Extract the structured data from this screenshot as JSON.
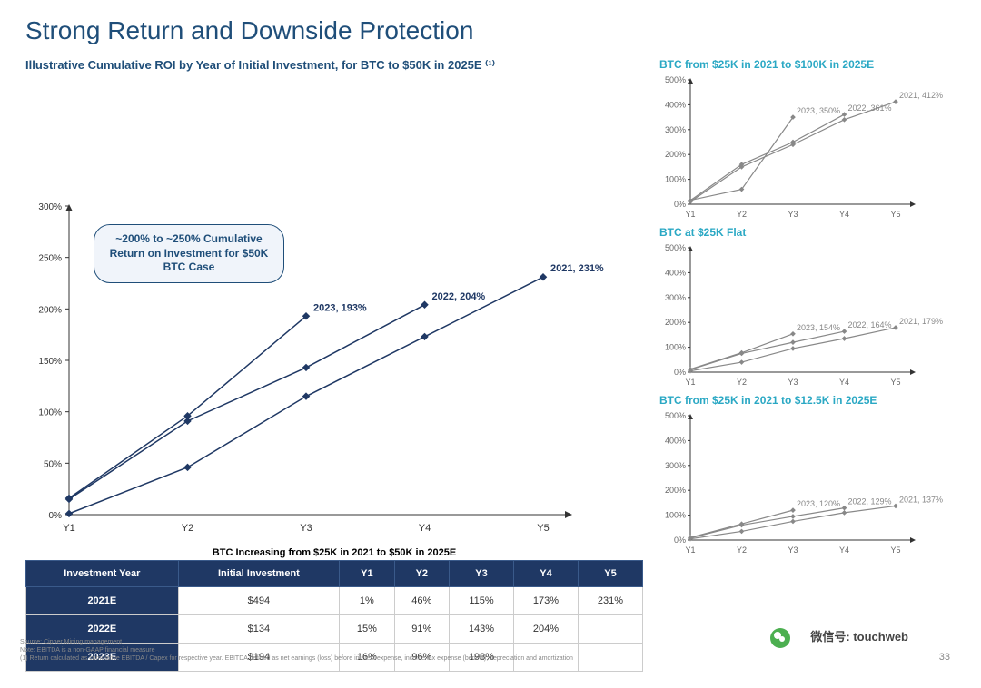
{
  "title": "Strong Return and Downside Protection",
  "main_chart": {
    "subtitle": "Illustrative Cumulative ROI by Year of Initial Investment, for BTC to $50K in 2025E ⁽¹⁾",
    "type": "line",
    "callout": "~200% to ~250% Cumulative Return on Investment for $50K BTC Case",
    "x_categories": [
      "Y1",
      "Y2",
      "Y3",
      "Y4",
      "Y5"
    ],
    "ylim": [
      0,
      300
    ],
    "ytick_step": 50,
    "y_format": "percent",
    "line_color": "#1f3864",
    "marker_style": "diamond",
    "marker_size": 4,
    "line_width": 1.5,
    "background_color": "#ffffff",
    "series": [
      {
        "name": "2021",
        "label": "2021, 231%",
        "values": [
          1,
          46,
          115,
          173,
          231
        ]
      },
      {
        "name": "2022",
        "label": "2022, 204%",
        "values": [
          15,
          91,
          143,
          204
        ]
      },
      {
        "name": "2023",
        "label": "2023, 193%",
        "values": [
          16,
          96,
          193
        ]
      }
    ]
  },
  "table": {
    "title": "BTC Increasing from $25K in 2021 to $50K in 2025E",
    "header_bg": "#1f3864",
    "header_color": "#ffffff",
    "columns": [
      "Investment Year",
      "Initial Investment",
      "Y1",
      "Y2",
      "Y3",
      "Y4",
      "Y5"
    ],
    "rows": [
      [
        "2021E",
        "$494",
        "1%",
        "46%",
        "115%",
        "173%",
        "231%"
      ],
      [
        "2022E",
        "$134",
        "15%",
        "91%",
        "143%",
        "204%",
        ""
      ],
      [
        "2023E",
        "$194",
        "16%",
        "96%",
        "193%",
        "",
        ""
      ]
    ]
  },
  "small_charts": [
    {
      "title": "BTC from $25K in 2021 to $100K in 2025E",
      "type": "line",
      "x_categories": [
        "Y1",
        "Y2",
        "Y3",
        "Y4",
        "Y5"
      ],
      "ylim": [
        0,
        500
      ],
      "ytick_step": 100,
      "line_color": "#888888",
      "series": [
        {
          "name": "2021",
          "label": "2021, 412%",
          "values": [
            10,
            150,
            240,
            340,
            412
          ]
        },
        {
          "name": "2022",
          "label": "2022, 361%",
          "values": [
            15,
            160,
            250,
            361
          ]
        },
        {
          "name": "2023",
          "label": "2023, 350%",
          "values": [
            16,
            60,
            350
          ]
        }
      ]
    },
    {
      "title": "BTC at $25K Flat",
      "type": "line",
      "x_categories": [
        "Y1",
        "Y2",
        "Y3",
        "Y4",
        "Y5"
      ],
      "ylim": [
        0,
        500
      ],
      "ytick_step": 100,
      "line_color": "#888888",
      "series": [
        {
          "name": "2021",
          "label": "2021, 179%",
          "values": [
            5,
            40,
            95,
            135,
            179
          ]
        },
        {
          "name": "2022",
          "label": "2022, 164%",
          "values": [
            10,
            75,
            120,
            164
          ]
        },
        {
          "name": "2023",
          "label": "2023, 154%",
          "values": [
            12,
            78,
            154
          ]
        }
      ]
    },
    {
      "title": "BTC from $25K in 2021 to $12.5K in 2025E",
      "type": "line",
      "x_categories": [
        "Y1",
        "Y2",
        "Y3",
        "Y4",
        "Y5"
      ],
      "ylim": [
        0,
        500
      ],
      "ytick_step": 100,
      "line_color": "#888888",
      "series": [
        {
          "name": "2021",
          "label": "2021, 137%",
          "values": [
            5,
            35,
            75,
            110,
            137
          ]
        },
        {
          "name": "2022",
          "label": "2022, 129%",
          "values": [
            8,
            60,
            95,
            129
          ]
        },
        {
          "name": "2023",
          "label": "2023, 120%",
          "values": [
            10,
            65,
            120
          ]
        }
      ]
    }
  ],
  "footnotes": {
    "line1": "Source: Cipher Mining management",
    "line2": "Note: EBITDA is a non-GAAP financial measure",
    "line3": "(1) Return calculated as cumulative EBITDA / Capex for respective year. EBITDA defined as net earnings (loss) before interest expense, income tax expense (benefit), depreciation and amortization"
  },
  "page_number": "33",
  "watermark": "微信号: touchweb"
}
